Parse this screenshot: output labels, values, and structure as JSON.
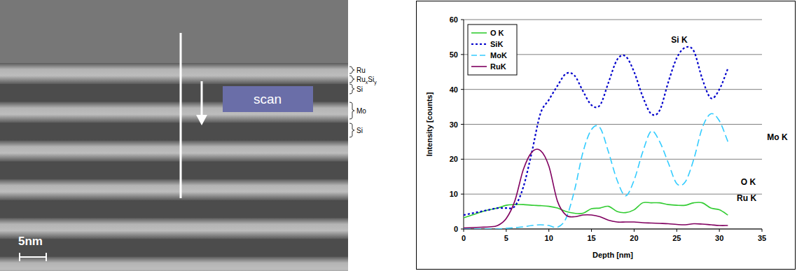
{
  "chart_data": {
    "type": "line",
    "x_label": "Depth [nm]",
    "y_label": "Intensity [counts]",
    "x": [
      0,
      1,
      2,
      3,
      4,
      5,
      6,
      7,
      8,
      9,
      10,
      11,
      12,
      13,
      14,
      15,
      16,
      17,
      18,
      19,
      20,
      21,
      22,
      23,
      24,
      25,
      26,
      27,
      28,
      29,
      30,
      31
    ],
    "xlim": [
      0,
      35
    ],
    "xticks": [
      0,
      5,
      10,
      15,
      20,
      25,
      30,
      35
    ],
    "ylim": [
      0,
      60
    ],
    "yticks": [
      0,
      10,
      20,
      30,
      40,
      50,
      60
    ],
    "grid": true,
    "legend": "top-left",
    "series": [
      {
        "name": "O K",
        "color": "#33cc33",
        "line_style": "solid",
        "values": [
          3.2,
          4,
          4.8,
          5.5,
          6,
          6.8,
          7,
          7,
          6.8,
          6.7,
          6.5,
          6,
          5,
          4.5,
          4.5,
          5.8,
          6,
          6.5,
          5,
          4.7,
          5.5,
          7.5,
          7.5,
          7.5,
          7,
          6.8,
          6.8,
          7.5,
          7.5,
          6,
          5.5,
          4
        ]
      },
      {
        "name": "SiK",
        "color": "#0000cc",
        "line_style": "dotted",
        "values": [
          4,
          4.5,
          5,
          5.5,
          6,
          6,
          6.5,
          12,
          22,
          33,
          37,
          41,
          44.5,
          44,
          39.5,
          35.5,
          35.5,
          42,
          48.5,
          49.5,
          45,
          38,
          33,
          34,
          42,
          49,
          52,
          51,
          43,
          37.5,
          40,
          46
        ]
      },
      {
        "name": "MoK",
        "color": "#33ccff",
        "line_style": "dashed",
        "values": [
          0,
          0,
          0,
          0,
          0,
          0.2,
          0.4,
          0.6,
          1,
          1.2,
          1,
          0.5,
          3,
          11,
          22,
          28.5,
          29,
          22,
          14,
          9.5,
          14,
          22,
          28,
          25,
          19,
          13,
          13.5,
          20,
          29,
          33,
          31,
          25
        ]
      },
      {
        "name": "RuK",
        "color": "#800060",
        "line_style": "solid",
        "values": [
          0.3,
          0.4,
          0.5,
          0.6,
          1,
          3,
          8,
          17,
          22,
          22.5,
          18,
          8,
          4,
          3.5,
          4,
          4,
          3.5,
          2.5,
          2,
          2,
          2,
          1.8,
          1.7,
          1.6,
          1.5,
          1.3,
          1.2,
          1.5,
          1.4,
          1.2,
          1,
          1
        ]
      }
    ],
    "annotations": [
      {
        "text": "Si K",
        "x": 25.3,
        "y": 54.2
      },
      {
        "text": "Mo K",
        "x": 36.8,
        "y": 26.3
      },
      {
        "text": "O K",
        "x": 33.4,
        "y": 13.4
      },
      {
        "text": "Ru K",
        "x": 33.2,
        "y": 8.8
      }
    ]
  },
  "micrograph": {
    "labels": [
      [
        {
          "text": "Ru"
        }
      ],
      [
        {
          "text": "Ru"
        },
        {
          "text": "x",
          "sub": true
        },
        {
          "text": "Si"
        },
        {
          "text": "y",
          "sub": true
        }
      ],
      [
        {
          "text": "Si"
        }
      ],
      [
        {
          "text": "Mo"
        }
      ],
      [
        {
          "text": "Si"
        }
      ]
    ],
    "scan_label": "scan",
    "scale_bar": "5nm"
  }
}
